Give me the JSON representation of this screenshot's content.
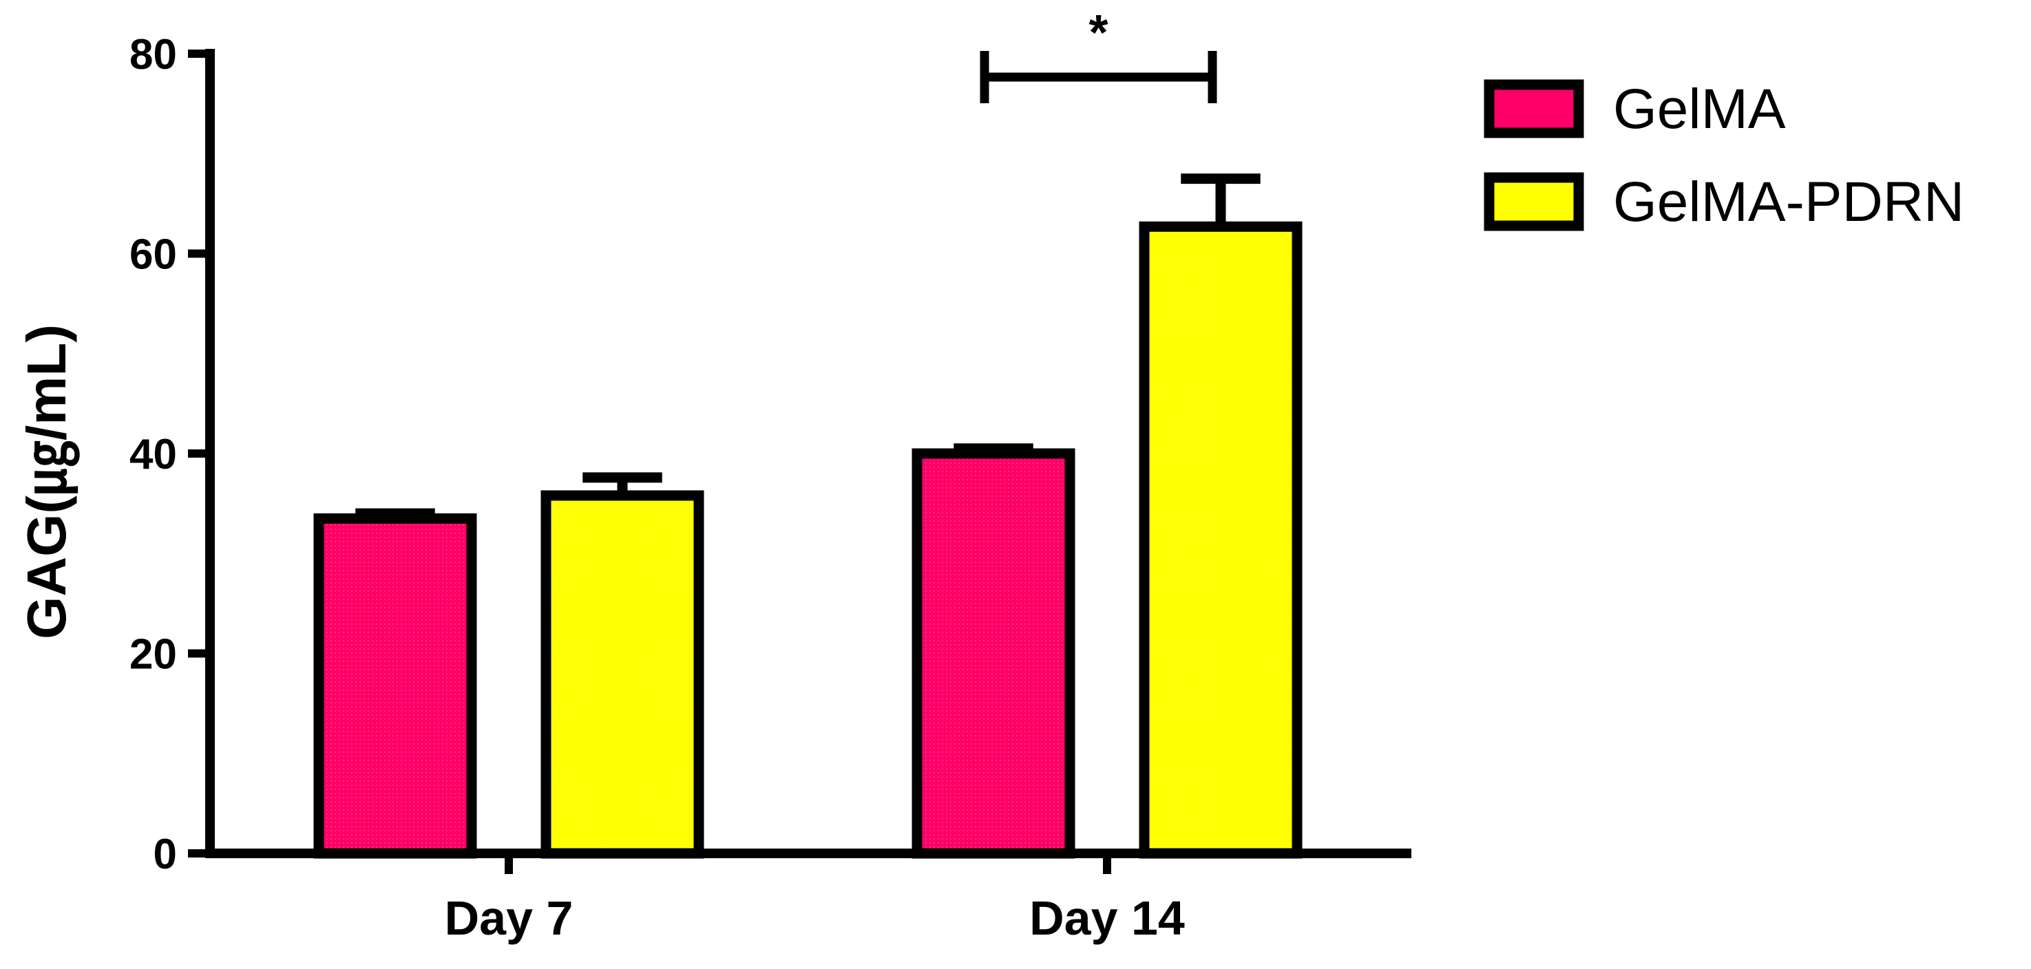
{
  "chart_data": {
    "type": "bar",
    "categories": [
      "Day 7",
      "Day 14"
    ],
    "series": [
      {
        "name": "GelMA",
        "values": [
          33.5,
          40.0
        ],
        "errors": [
          0.5,
          0.5
        ],
        "color": "#ff0066"
      },
      {
        "name": "GelMA-PDRN",
        "values": [
          35.8,
          62.7
        ],
        "errors": [
          1.8,
          4.8
        ],
        "color": "#ffff00"
      }
    ],
    "title": "",
    "xlabel": "",
    "ylabel": "GAG(㎍/mL)",
    "ylim": [
      0,
      80
    ],
    "yticks": [
      0,
      20,
      40,
      60,
      80
    ],
    "legend_position": "top-right",
    "grid": false,
    "significance": [
      {
        "category": "Day 14",
        "label": "*"
      }
    ]
  }
}
